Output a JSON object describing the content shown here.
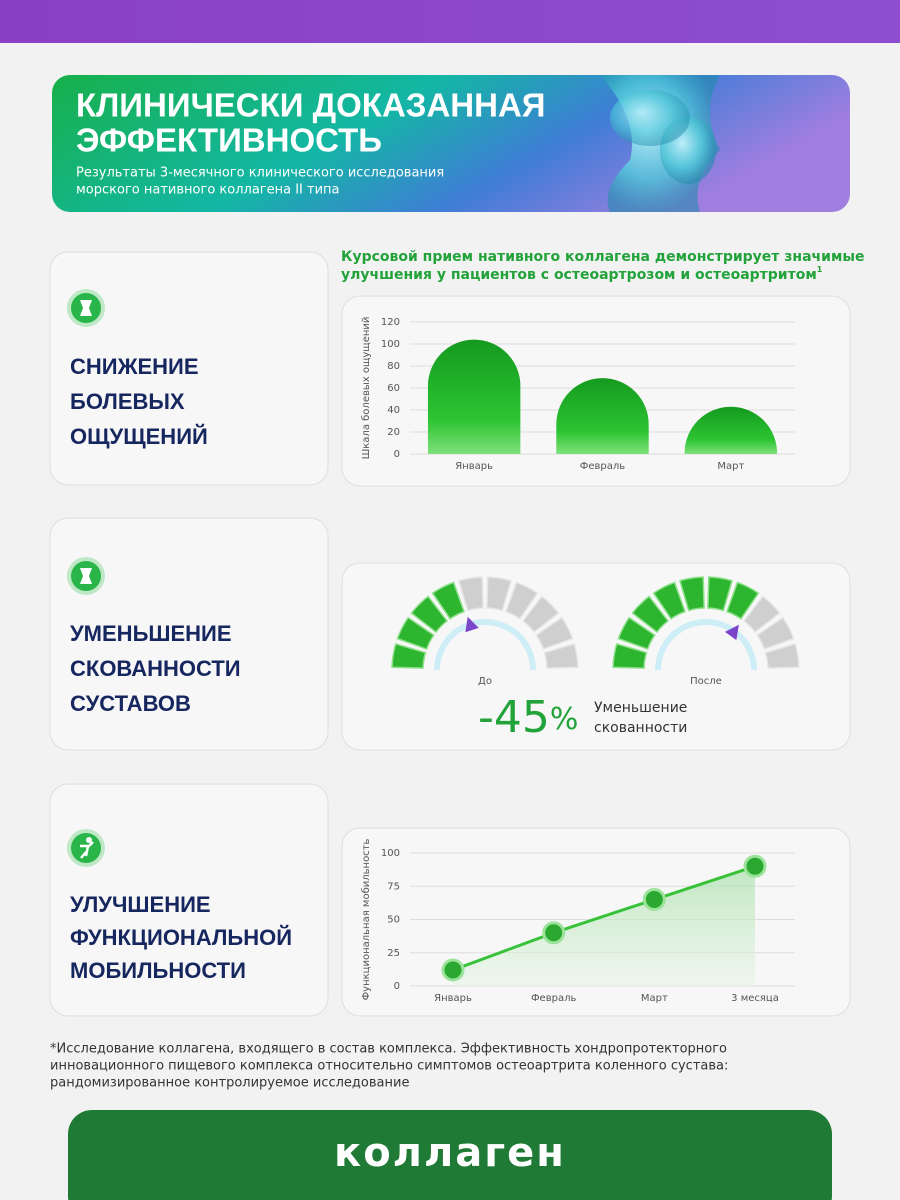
{
  "header": {
    "title": [
      "КЛИНИЧЕСКИ ДОКАЗАННАЯ",
      "ЭФФЕКТИВНОСТЬ"
    ],
    "subtitle": [
      "Результаты 3-месячного клинического исследования",
      "морского нативного коллагена II типа"
    ]
  },
  "cards": [
    {
      "title": [
        "СНИЖЕНИЕ",
        "БОЛЕВЫХ",
        "ОЩУЩЕНИЙ"
      ]
    },
    {
      "title": [
        "УМЕНЬШЕНИЕ",
        "СКОВАННОСТИ",
        "СУСТАВОВ"
      ]
    },
    {
      "title": [
        "УЛУЧШЕНИЕ",
        "ФУНКЦИОНАЛЬНОЙ",
        "МОБИЛЬНОСТИ"
      ]
    }
  ],
  "chart_data": [
    {
      "type": "bar",
      "title": [
        "Курсовой прием нативного коллагена демонстрирует значимые",
        "улучшения у пациентов с остеоартрозом и остеоартритом"
      ],
      "title_note": "1",
      "y_label": "Шкала болевых ощущений",
      "categories": [
        "Январь",
        "Февраль",
        "Март"
      ],
      "values": [
        104,
        69,
        43
      ],
      "color": "#22b02a",
      "ylim": [
        0,
        120
      ],
      "yticks": [
        0,
        20,
        40,
        60,
        80,
        100,
        120
      ],
      "grid": true
    },
    {
      "type": "gauge",
      "categories": [
        "До",
        "После"
      ],
      "values": [
        4,
        7
      ],
      "ylim": [
        0,
        10
      ],
      "color": "#2db52f",
      "annotation": "-45",
      "annotation_unit": "%",
      "annotation_note": [
        "Уменьшение",
        "скованности"
      ]
    },
    {
      "type": "line",
      "y_label": "Функциональная мобильность",
      "categories": [
        "Январь",
        "Февраль",
        "Март",
        "3 месяца"
      ],
      "values": [
        12,
        40,
        65,
        90
      ],
      "color": "#37c23a",
      "ylim": [
        0,
        100
      ],
      "yticks": [
        0,
        25,
        50,
        75,
        100
      ],
      "grid": true
    }
  ],
  "footnote": [
    "*Исследование коллагена, входящего в состав комплекса. Эффективность хондропротекторного",
    "инновационного пищевого комплекса относительно симптомов остеоартрита коленного сустава:",
    "рандомизированное контролируемое исследование"
  ],
  "footer": {
    "title": "коллаген"
  }
}
